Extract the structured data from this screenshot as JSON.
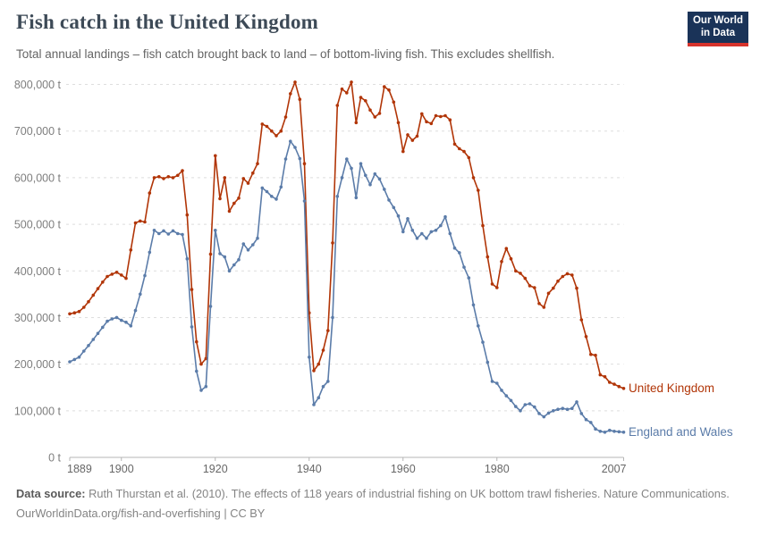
{
  "header": {
    "title": "Fish catch in the United Kingdom",
    "subtitle": "Total annual landings – fish catch brought back to land – of bottom-living fish. This excludes shellfish."
  },
  "logo": {
    "line1": "Our World",
    "line2": "in Data",
    "bg_color": "#1a3358",
    "bar_color": "#d7332c"
  },
  "chart_data": {
    "type": "line",
    "title": "Fish catch in the United Kingdom",
    "xlabel": "",
    "ylabel": "",
    "unit": "t",
    "xlim": [
      1889,
      2007
    ],
    "ylim": [
      0,
      800000
    ],
    "grid": "horizontal dashed",
    "legend_position": "labels at line ends (right)",
    "x_ticks": [
      1889,
      1900,
      1920,
      1940,
      1960,
      1980,
      2007
    ],
    "y_ticks": [
      0,
      100000,
      200000,
      300000,
      400000,
      500000,
      600000,
      700000,
      800000
    ],
    "y_tick_labels": [
      "0 t",
      "100,000 t",
      "200,000 t",
      "300,000 t",
      "400,000 t",
      "500,000 t",
      "600,000 t",
      "700,000 t",
      "800,000 t"
    ],
    "years": [
      1889,
      1890,
      1891,
      1892,
      1893,
      1894,
      1895,
      1896,
      1897,
      1898,
      1899,
      1900,
      1901,
      1902,
      1903,
      1904,
      1905,
      1906,
      1907,
      1908,
      1909,
      1910,
      1911,
      1912,
      1913,
      1914,
      1915,
      1916,
      1917,
      1918,
      1919,
      1920,
      1921,
      1922,
      1923,
      1924,
      1925,
      1926,
      1927,
      1928,
      1929,
      1930,
      1931,
      1932,
      1933,
      1934,
      1935,
      1936,
      1937,
      1938,
      1939,
      1940,
      1941,
      1942,
      1943,
      1944,
      1945,
      1946,
      1947,
      1948,
      1949,
      1950,
      1951,
      1952,
      1953,
      1954,
      1955,
      1956,
      1957,
      1958,
      1959,
      1960,
      1961,
      1962,
      1963,
      1964,
      1965,
      1966,
      1967,
      1968,
      1969,
      1970,
      1971,
      1972,
      1973,
      1974,
      1975,
      1976,
      1977,
      1978,
      1979,
      1980,
      1981,
      1982,
      1983,
      1984,
      1985,
      1986,
      1987,
      1988,
      1989,
      1990,
      1991,
      1992,
      1993,
      1994,
      1995,
      1996,
      1997,
      1998,
      1999,
      2000,
      2001,
      2002,
      2003,
      2004,
      2005,
      2006,
      2007
    ],
    "series": [
      {
        "name": "United Kingdom",
        "color": "#b13507",
        "values": [
          308000,
          310000,
          313000,
          322000,
          334000,
          348000,
          362000,
          376000,
          388000,
          393000,
          397000,
          391000,
          384000,
          445000,
          503000,
          507000,
          505000,
          567000,
          600000,
          602000,
          598000,
          602000,
          600000,
          605000,
          615000,
          520000,
          360000,
          248000,
          200000,
          212000,
          436000,
          647000,
          555000,
          600000,
          528000,
          545000,
          556000,
          598000,
          588000,
          610000,
          630000,
          715000,
          710000,
          700000,
          690000,
          700000,
          730000,
          780000,
          805000,
          768000,
          630000,
          310000,
          186000,
          200000,
          230000,
          272000,
          460000,
          755000,
          790000,
          782000,
          805000,
          718000,
          772000,
          765000,
          745000,
          730000,
          738000,
          795000,
          788000,
          762000,
          718000,
          656000,
          692000,
          680000,
          689000,
          737000,
          720000,
          716000,
          733000,
          731000,
          733000,
          724000,
          672000,
          662000,
          656000,
          643000,
          600000,
          573000,
          497000,
          430000,
          372000,
          364000,
          420000,
          448000,
          426000,
          400000,
          395000,
          384000,
          368000,
          364000,
          330000,
          322000,
          352000,
          363000,
          378000,
          388000,
          394000,
          391000,
          363000,
          295000,
          259000,
          221000,
          219000,
          177000,
          173000,
          161000,
          157000,
          152000,
          148000
        ]
      },
      {
        "name": "England and Wales",
        "color": "#5b7ca9",
        "values": [
          205000,
          210000,
          215000,
          228000,
          240000,
          253000,
          266000,
          279000,
          292000,
          297000,
          300000,
          294000,
          290000,
          282000,
          315000,
          350000,
          390000,
          440000,
          487000,
          480000,
          486000,
          479000,
          486000,
          480000,
          478000,
          426000,
          280000,
          185000,
          144000,
          152000,
          324000,
          487000,
          437000,
          430000,
          400000,
          413000,
          424000,
          458000,
          445000,
          456000,
          470000,
          578000,
          570000,
          560000,
          554000,
          580000,
          640000,
          678000,
          665000,
          641000,
          550000,
          215000,
          113000,
          128000,
          152000,
          163000,
          300000,
          560000,
          600000,
          640000,
          620000,
          557000,
          630000,
          605000,
          585000,
          608000,
          597000,
          575000,
          552000,
          536000,
          518000,
          484000,
          512000,
          487000,
          470000,
          480000,
          470000,
          484000,
          487000,
          497000,
          516000,
          480000,
          449000,
          439000,
          408000,
          385000,
          327000,
          282000,
          247000,
          204000,
          163000,
          159000,
          144000,
          132000,
          122000,
          109000,
          100000,
          113000,
          115000,
          108000,
          94000,
          87000,
          95000,
          100000,
          103000,
          105000,
          103000,
          105000,
          119000,
          94000,
          81000,
          75000,
          61000,
          56000,
          54000,
          58000,
          56000,
          55000,
          54000
        ]
      }
    ]
  },
  "footer": {
    "source_label": "Data source:",
    "source_text": " Ruth Thurstan et al. (2010). The effects of 118 years of industrial fishing on UK bottom trawl fisheries. Nature Communications.",
    "link_line": "OurWorldinData.org/fish-and-overfishing | CC BY"
  }
}
